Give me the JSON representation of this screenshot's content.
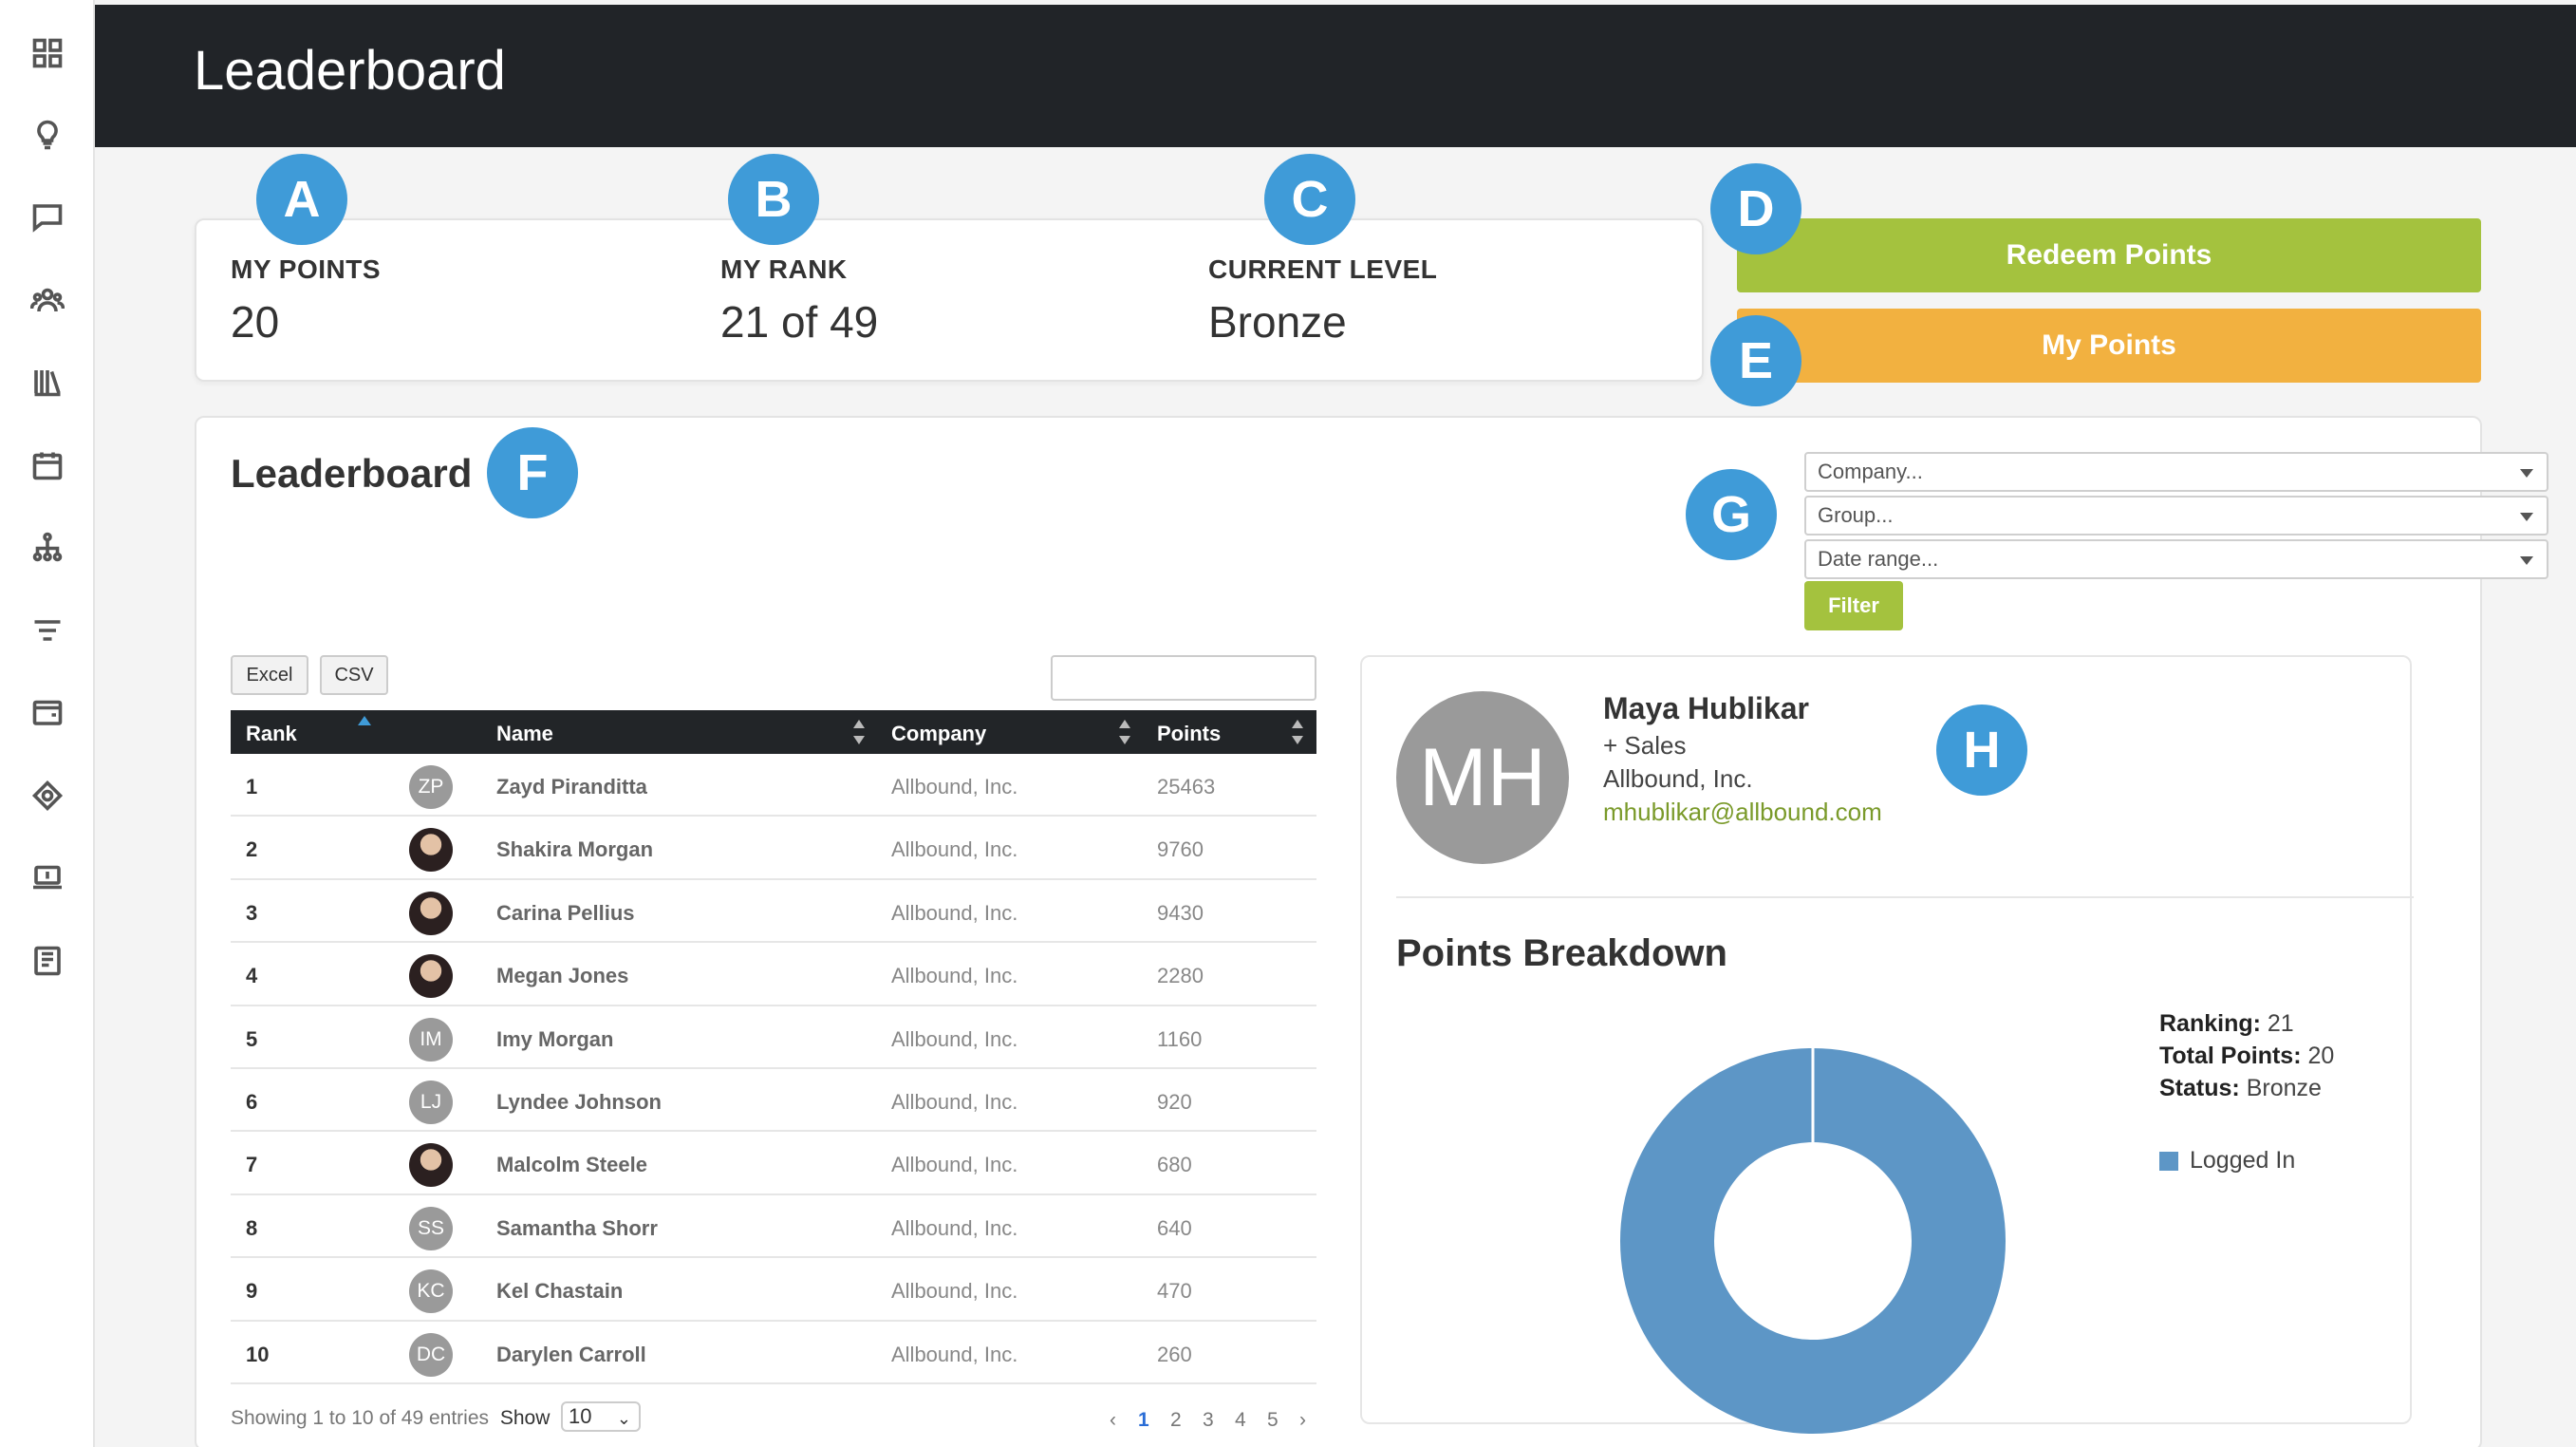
{
  "header": {
    "title": "Leaderboard"
  },
  "badges": [
    "A",
    "B",
    "C",
    "D",
    "E",
    "F",
    "G",
    "H"
  ],
  "stats": {
    "my_points": {
      "label": "MY POINTS",
      "value": "20"
    },
    "my_rank": {
      "label": "MY RANK",
      "value": "21 of 49"
    },
    "current_level": {
      "label": "CURRENT LEVEL",
      "value": "Bronze"
    }
  },
  "actions": {
    "redeem": "Redeem Points",
    "my_points": "My Points"
  },
  "leaderboard": {
    "title": "Leaderboard",
    "filters": {
      "company": "Company...",
      "group": "Group...",
      "date_range": "Date range...",
      "filter_button": "Filter"
    },
    "export": {
      "excel": "Excel",
      "csv": "CSV"
    },
    "columns": {
      "rank": "Rank",
      "name": "Name",
      "company": "Company",
      "points": "Points"
    },
    "rows": [
      {
        "rank": "1",
        "initials": "ZP",
        "name": "Zayd Piranditta",
        "company": "Allbound, Inc.",
        "points": "25463"
      },
      {
        "rank": "2",
        "initials": "",
        "name": "Shakira Morgan",
        "company": "Allbound, Inc.",
        "points": "9760"
      },
      {
        "rank": "3",
        "initials": "",
        "name": "Carina Pellius",
        "company": "Allbound, Inc.",
        "points": "9430"
      },
      {
        "rank": "4",
        "initials": "",
        "name": "Megan Jones",
        "company": "Allbound, Inc.",
        "points": "2280"
      },
      {
        "rank": "5",
        "initials": "IM",
        "name": "Imy Morgan",
        "company": "Allbound, Inc.",
        "points": "1160"
      },
      {
        "rank": "6",
        "initials": "LJ",
        "name": "Lyndee Johnson",
        "company": "Allbound, Inc.",
        "points": "920"
      },
      {
        "rank": "7",
        "initials": "",
        "name": "Malcolm Steele",
        "company": "Allbound, Inc.",
        "points": "680"
      },
      {
        "rank": "8",
        "initials": "SS",
        "name": "Samantha Shorr",
        "company": "Allbound, Inc.",
        "points": "640"
      },
      {
        "rank": "9",
        "initials": "KC",
        "name": "Kel Chastain",
        "company": "Allbound, Inc.",
        "points": "470"
      },
      {
        "rank": "10",
        "initials": "DC",
        "name": "Darylen Carroll",
        "company": "Allbound, Inc.",
        "points": "260"
      }
    ],
    "footer": {
      "showing": "Showing 1 to 10 of 49 entries",
      "show_label": "Show",
      "page_size": "10",
      "prev": "‹",
      "next": "›",
      "pages": [
        "1",
        "2",
        "3",
        "4",
        "5"
      ]
    }
  },
  "profile": {
    "initials": "MH",
    "name": "Maya Hublikar",
    "group": "+ Sales",
    "company": "Allbound, Inc.",
    "email": "mhublikar@allbound.com",
    "breakdown_title": "Points Breakdown",
    "ranking_label": "Ranking:",
    "ranking": "21",
    "total_label": "Total Points:",
    "total": "20",
    "status_label": "Status:",
    "status": "Bronze",
    "legend": "Logged In"
  },
  "chart_data": {
    "type": "pie",
    "categories": [
      "Logged In"
    ],
    "values": [
      20
    ],
    "colors": [
      "#5d96c6"
    ]
  },
  "sidebar_icons": [
    "dashboard-icon",
    "lightbulb-icon",
    "chat-icon",
    "team-icon",
    "library-icon",
    "calendar-icon",
    "org-chart-icon",
    "filter-icon",
    "wallet-icon",
    "integration-icon",
    "laptop-icon",
    "news-icon"
  ]
}
